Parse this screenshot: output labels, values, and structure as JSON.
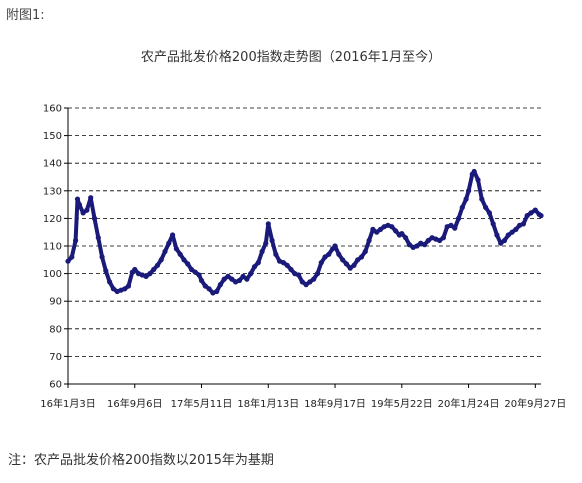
{
  "figure_label": "附图1:",
  "footnote": "注：农产品批发价格200指数以2015年为基期",
  "colors": {
    "series": "#1a1a7a",
    "grid": "#000000",
    "axis": "#000000"
  },
  "chart_data": {
    "type": "line",
    "title": "农产品批发价格200指数走势图（2016年1月至今）",
    "xlabel": "",
    "ylabel": "",
    "ylim": [
      60,
      160
    ],
    "yticks": [
      60,
      70,
      80,
      90,
      100,
      110,
      120,
      130,
      140,
      150,
      160
    ],
    "grid": "horizontal-dashed",
    "x_tick_labels": [
      "16年1月3日",
      "16年9月6日",
      "17年5月11日",
      "18年1月13日",
      "18年9月17日",
      "19年5月22日",
      "20年1月24日",
      "20年9月27日"
    ],
    "x_tick_dates": [
      "2016-01-03",
      "2016-09-06",
      "2017-05-11",
      "2018-01-13",
      "2018-09-17",
      "2019-05-22",
      "2020-01-24",
      "2020-09-27"
    ],
    "x_range": [
      "2016-01-03",
      "2020-10-18"
    ],
    "series": [
      {
        "values": [
          [
            "2016-01-03",
            104.5
          ],
          [
            "2016-01-17",
            106
          ],
          [
            "2016-01-31",
            112
          ],
          [
            "2016-02-07",
            127
          ],
          [
            "2016-02-14",
            125
          ],
          [
            "2016-02-28",
            122
          ],
          [
            "2016-03-13",
            123
          ],
          [
            "2016-03-27",
            127.5
          ],
          [
            "2016-04-10",
            120
          ],
          [
            "2016-04-24",
            113
          ],
          [
            "2016-05-08",
            106
          ],
          [
            "2016-05-22",
            101
          ],
          [
            "2016-06-05",
            97
          ],
          [
            "2016-06-19",
            94.5
          ],
          [
            "2016-07-03",
            93.5
          ],
          [
            "2016-07-17",
            94
          ],
          [
            "2016-07-31",
            94.5
          ],
          [
            "2016-08-14",
            95.5
          ],
          [
            "2016-08-28",
            100.5
          ],
          [
            "2016-09-06",
            101.5
          ],
          [
            "2016-09-20",
            100
          ],
          [
            "2016-10-04",
            99.5
          ],
          [
            "2016-10-18",
            99
          ],
          [
            "2016-11-01",
            100
          ],
          [
            "2016-11-15",
            101.5
          ],
          [
            "2016-11-29",
            103
          ],
          [
            "2016-12-13",
            105
          ],
          [
            "2016-12-27",
            108
          ],
          [
            "2017-01-10",
            111
          ],
          [
            "2017-01-24",
            114
          ],
          [
            "2017-02-07",
            109
          ],
          [
            "2017-02-21",
            107
          ],
          [
            "2017-03-07",
            105
          ],
          [
            "2017-03-21",
            103.5
          ],
          [
            "2017-04-04",
            101.5
          ],
          [
            "2017-04-18",
            100.5
          ],
          [
            "2017-05-02",
            99.5
          ],
          [
            "2017-05-11",
            97.5
          ],
          [
            "2017-05-25",
            95.5
          ],
          [
            "2017-06-08",
            94.5
          ],
          [
            "2017-06-22",
            93
          ],
          [
            "2017-07-06",
            93.5
          ],
          [
            "2017-07-20",
            96
          ],
          [
            "2017-08-03",
            98
          ],
          [
            "2017-08-17",
            99
          ],
          [
            "2017-08-31",
            98
          ],
          [
            "2017-09-14",
            97
          ],
          [
            "2017-09-28",
            97.5
          ],
          [
            "2017-10-12",
            99
          ],
          [
            "2017-10-26",
            98
          ],
          [
            "2017-11-09",
            100
          ],
          [
            "2017-11-23",
            102.5
          ],
          [
            "2017-12-07",
            104
          ],
          [
            "2017-12-21",
            108
          ],
          [
            "2018-01-04",
            111
          ],
          [
            "2018-01-13",
            118
          ],
          [
            "2018-01-27",
            112
          ],
          [
            "2018-02-10",
            107
          ],
          [
            "2018-02-24",
            104.5
          ],
          [
            "2018-03-10",
            104
          ],
          [
            "2018-03-24",
            103
          ],
          [
            "2018-04-07",
            101.5
          ],
          [
            "2018-04-21",
            100
          ],
          [
            "2018-05-05",
            99.5
          ],
          [
            "2018-05-19",
            97
          ],
          [
            "2018-06-02",
            96
          ],
          [
            "2018-06-16",
            97
          ],
          [
            "2018-06-30",
            98
          ],
          [
            "2018-07-14",
            100
          ],
          [
            "2018-07-28",
            104
          ],
          [
            "2018-08-11",
            106
          ],
          [
            "2018-08-25",
            107
          ],
          [
            "2018-09-08",
            109
          ],
          [
            "2018-09-17",
            110
          ],
          [
            "2018-10-01",
            107
          ],
          [
            "2018-10-15",
            105
          ],
          [
            "2018-10-29",
            103.5
          ],
          [
            "2018-11-12",
            102
          ],
          [
            "2018-11-26",
            103
          ],
          [
            "2018-12-10",
            105
          ],
          [
            "2018-12-24",
            106
          ],
          [
            "2019-01-07",
            108
          ],
          [
            "2019-01-21",
            112
          ],
          [
            "2019-02-04",
            116
          ],
          [
            "2019-02-18",
            115
          ],
          [
            "2019-03-04",
            116
          ],
          [
            "2019-03-18",
            117
          ],
          [
            "2019-04-01",
            117.5
          ],
          [
            "2019-04-15",
            117
          ],
          [
            "2019-04-29",
            115.5
          ],
          [
            "2019-05-13",
            114
          ],
          [
            "2019-05-22",
            114.5
          ],
          [
            "2019-06-05",
            113
          ],
          [
            "2019-06-19",
            110.5
          ],
          [
            "2019-07-03",
            109.5
          ],
          [
            "2019-07-17",
            110
          ],
          [
            "2019-07-31",
            111
          ],
          [
            "2019-08-14",
            110.5
          ],
          [
            "2019-08-28",
            112
          ],
          [
            "2019-09-11",
            113
          ],
          [
            "2019-09-25",
            112.5
          ],
          [
            "2019-10-09",
            112
          ],
          [
            "2019-10-23",
            113
          ],
          [
            "2019-11-06",
            117
          ],
          [
            "2019-11-20",
            117.5
          ],
          [
            "2019-12-04",
            116.5
          ],
          [
            "2019-12-18",
            120
          ],
          [
            "2020-01-01",
            124
          ],
          [
            "2020-01-15",
            127
          ],
          [
            "2020-01-24",
            130
          ],
          [
            "2020-02-07",
            136
          ],
          [
            "2020-02-14",
            137
          ],
          [
            "2020-02-28",
            134
          ],
          [
            "2020-03-13",
            127
          ],
          [
            "2020-03-27",
            124
          ],
          [
            "2020-04-10",
            122
          ],
          [
            "2020-04-24",
            118
          ],
          [
            "2020-05-08",
            114
          ],
          [
            "2020-05-22",
            111
          ],
          [
            "2020-06-05",
            112
          ],
          [
            "2020-06-19",
            114
          ],
          [
            "2020-07-03",
            115
          ],
          [
            "2020-07-17",
            116
          ],
          [
            "2020-07-31",
            117.5
          ],
          [
            "2020-08-14",
            118
          ],
          [
            "2020-08-28",
            121
          ],
          [
            "2020-09-11",
            122
          ],
          [
            "2020-09-27",
            123
          ],
          [
            "2020-10-11",
            121.5
          ],
          [
            "2020-10-18",
            121
          ]
        ]
      }
    ]
  }
}
